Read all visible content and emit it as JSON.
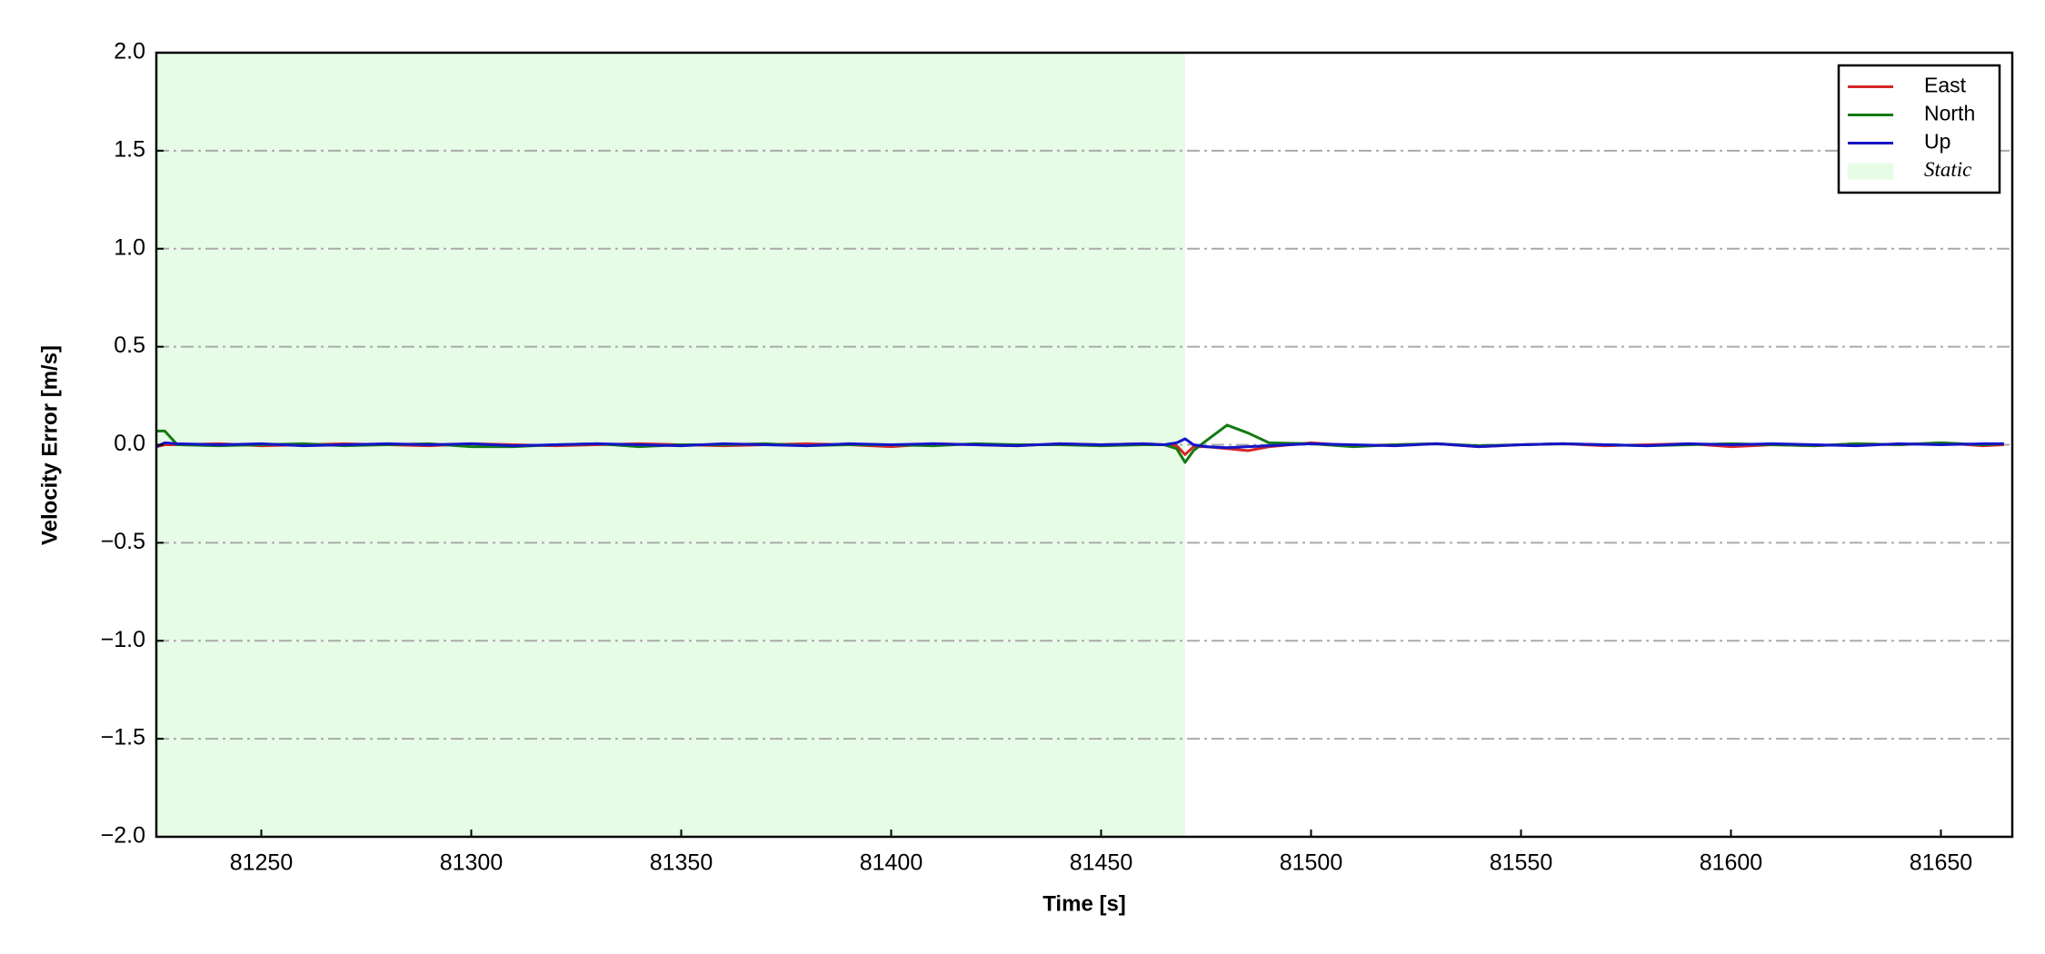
{
  "chart_data": {
    "type": "line",
    "xlabel": "Time [s]",
    "ylabel": "Velocity Error [m/s]",
    "x": [
      81225,
      81227,
      81230,
      81240,
      81250,
      81260,
      81270,
      81280,
      81290,
      81300,
      81310,
      81320,
      81330,
      81340,
      81350,
      81360,
      81370,
      81380,
      81390,
      81400,
      81410,
      81420,
      81430,
      81440,
      81450,
      81460,
      81465,
      81468,
      81470,
      81472,
      81475,
      81480,
      81485,
      81490,
      81500,
      81510,
      81520,
      81530,
      81540,
      81550,
      81560,
      81570,
      81580,
      81590,
      81600,
      81610,
      81620,
      81630,
      81640,
      81650,
      81660,
      81665
    ],
    "series": [
      {
        "name": "East",
        "color": "#d62728",
        "values": [
          -0.01,
          0.0,
          0.0,
          0.005,
          -0.005,
          0.0,
          0.005,
          0.0,
          -0.005,
          0.005,
          0.0,
          -0.005,
          0.0,
          0.005,
          0.0,
          -0.005,
          0.0,
          0.005,
          0.0,
          -0.01,
          0.005,
          0.0,
          -0.005,
          0.005,
          0.0,
          0.005,
          0.0,
          -0.005,
          -0.05,
          -0.01,
          -0.01,
          -0.02,
          -0.03,
          -0.01,
          0.01,
          -0.005,
          0.0,
          0.005,
          -0.01,
          0.0,
          0.005,
          -0.005,
          0.0,
          0.005,
          -0.01,
          0.0,
          -0.005,
          0.005,
          0.0,
          0.01,
          -0.005,
          0.0
        ]
      },
      {
        "name": "North",
        "color": "#137a13",
        "values": [
          0.07,
          0.07,
          0.0,
          -0.005,
          0.0,
          0.005,
          -0.005,
          0.0,
          0.005,
          -0.01,
          -0.01,
          0.0,
          0.005,
          -0.01,
          0.0,
          0.0,
          0.005,
          -0.005,
          0.0,
          0.0,
          -0.005,
          0.005,
          0.0,
          0.0,
          -0.005,
          0.0,
          0.0,
          -0.02,
          -0.09,
          -0.03,
          0.02,
          0.1,
          0.06,
          0.01,
          0.005,
          -0.01,
          0.0,
          0.005,
          -0.005,
          0.0,
          0.005,
          0.0,
          -0.005,
          0.0,
          0.005,
          0.0,
          -0.005,
          0.005,
          0.0,
          0.01,
          0.0,
          0.005
        ]
      },
      {
        "name": "Up",
        "color": "#1515c8",
        "values": [
          -0.01,
          0.01,
          0.005,
          0.0,
          0.005,
          -0.005,
          0.0,
          0.005,
          0.0,
          0.005,
          -0.005,
          0.0,
          0.005,
          0.0,
          -0.005,
          0.005,
          0.0,
          -0.005,
          0.005,
          0.0,
          0.005,
          0.0,
          -0.005,
          0.005,
          0.0,
          0.005,
          0.0,
          0.01,
          0.03,
          0.0,
          -0.01,
          -0.015,
          -0.01,
          -0.005,
          0.005,
          0.0,
          -0.005,
          0.005,
          -0.01,
          0.0,
          0.005,
          0.0,
          -0.005,
          0.005,
          0.0,
          0.005,
          0.0,
          -0.005,
          0.005,
          0.0,
          0.005,
          0.005
        ]
      }
    ],
    "shaded_regions": [
      {
        "name": "Static",
        "x": [
          81225,
          81470
        ],
        "color": "#e6fce6"
      }
    ],
    "xlim": [
      81225,
      81667
    ],
    "ylim": [
      -2.0,
      2.0
    ],
    "xticks": [
      81250,
      81300,
      81350,
      81400,
      81450,
      81500,
      81550,
      81600,
      81650
    ],
    "yticks": [
      {
        "value": -2.0,
        "label": "−2.0"
      },
      {
        "value": -1.5,
        "label": "−1.5"
      },
      {
        "value": -1.0,
        "label": "−1.0"
      },
      {
        "value": -0.5,
        "label": "−0.5"
      },
      {
        "value": 0.0,
        "label": "0.0"
      },
      {
        "value": 0.5,
        "label": "0.5"
      },
      {
        "value": 1.0,
        "label": "1.0"
      },
      {
        "value": 1.5,
        "label": "1.5"
      },
      {
        "value": 2.0,
        "label": "2.0"
      }
    ],
    "grid": true,
    "legend": "upper right"
  }
}
